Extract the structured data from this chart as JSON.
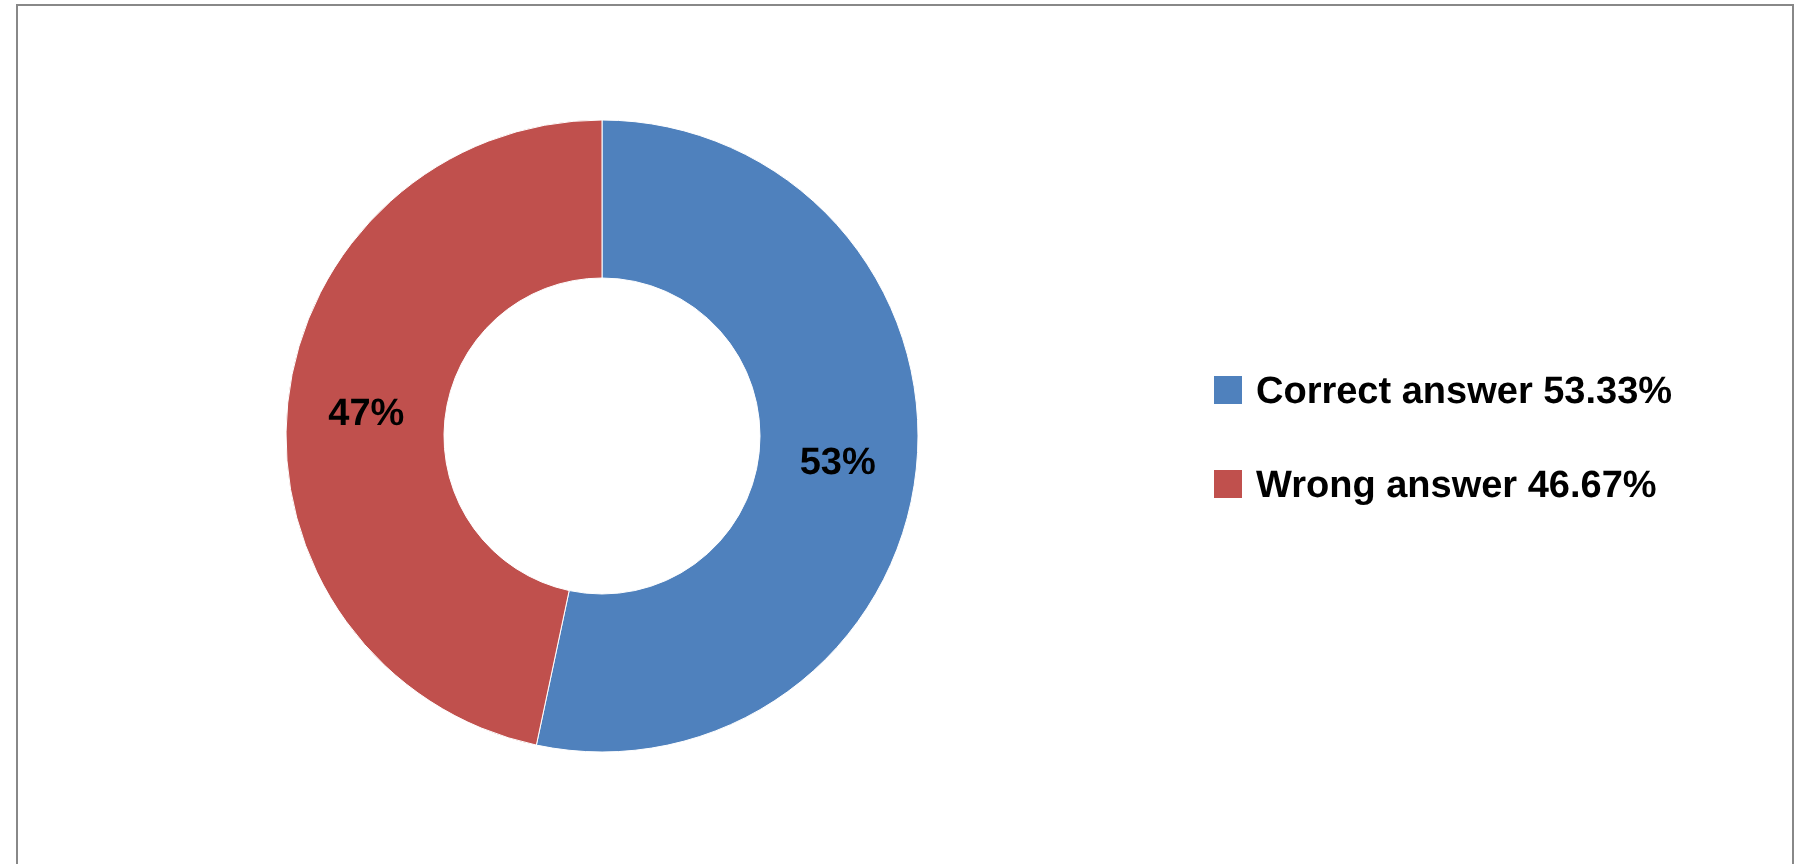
{
  "chart_data": {
    "type": "donut",
    "categories": [
      "Correct answer 53.33%",
      "Wrong answer 46.67%"
    ],
    "values": [
      53.33,
      46.67
    ],
    "colors": [
      "#4f81bd",
      "#c0504d"
    ],
    "value_labels": [
      "53%",
      "47%"
    ],
    "legend": "right"
  }
}
